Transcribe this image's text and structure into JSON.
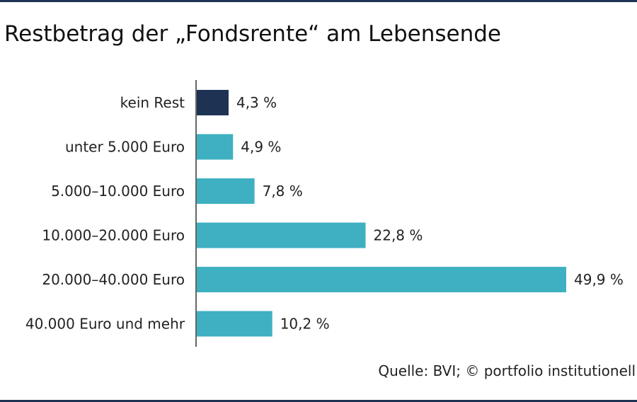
{
  "colors": {
    "rule": "#1e3354",
    "highlight": "#1e3354",
    "bar": "#3eb0c1"
  },
  "chart_data": {
    "type": "bar",
    "orientation": "horizontal",
    "title": "Restbetrag der „Fondsrente“ am Lebensende",
    "categories": [
      "kein Rest",
      "unter 5.000 Euro",
      "5.000–10.000 Euro",
      "10.000–20.000 Euro",
      "20.000–40.000 Euro",
      "40.000 Euro und mehr"
    ],
    "values": [
      4.3,
      4.9,
      7.8,
      22.8,
      49.9,
      10.2
    ],
    "value_labels": [
      "4,3 %",
      "4,9 %",
      "7,8 %",
      "22,8 %",
      "49,9 %",
      "10,2 %"
    ],
    "highlight_index": 0,
    "xlim": [
      0,
      50
    ],
    "grid": false,
    "source": "Quelle: BVI; © portfolio institutionell"
  }
}
